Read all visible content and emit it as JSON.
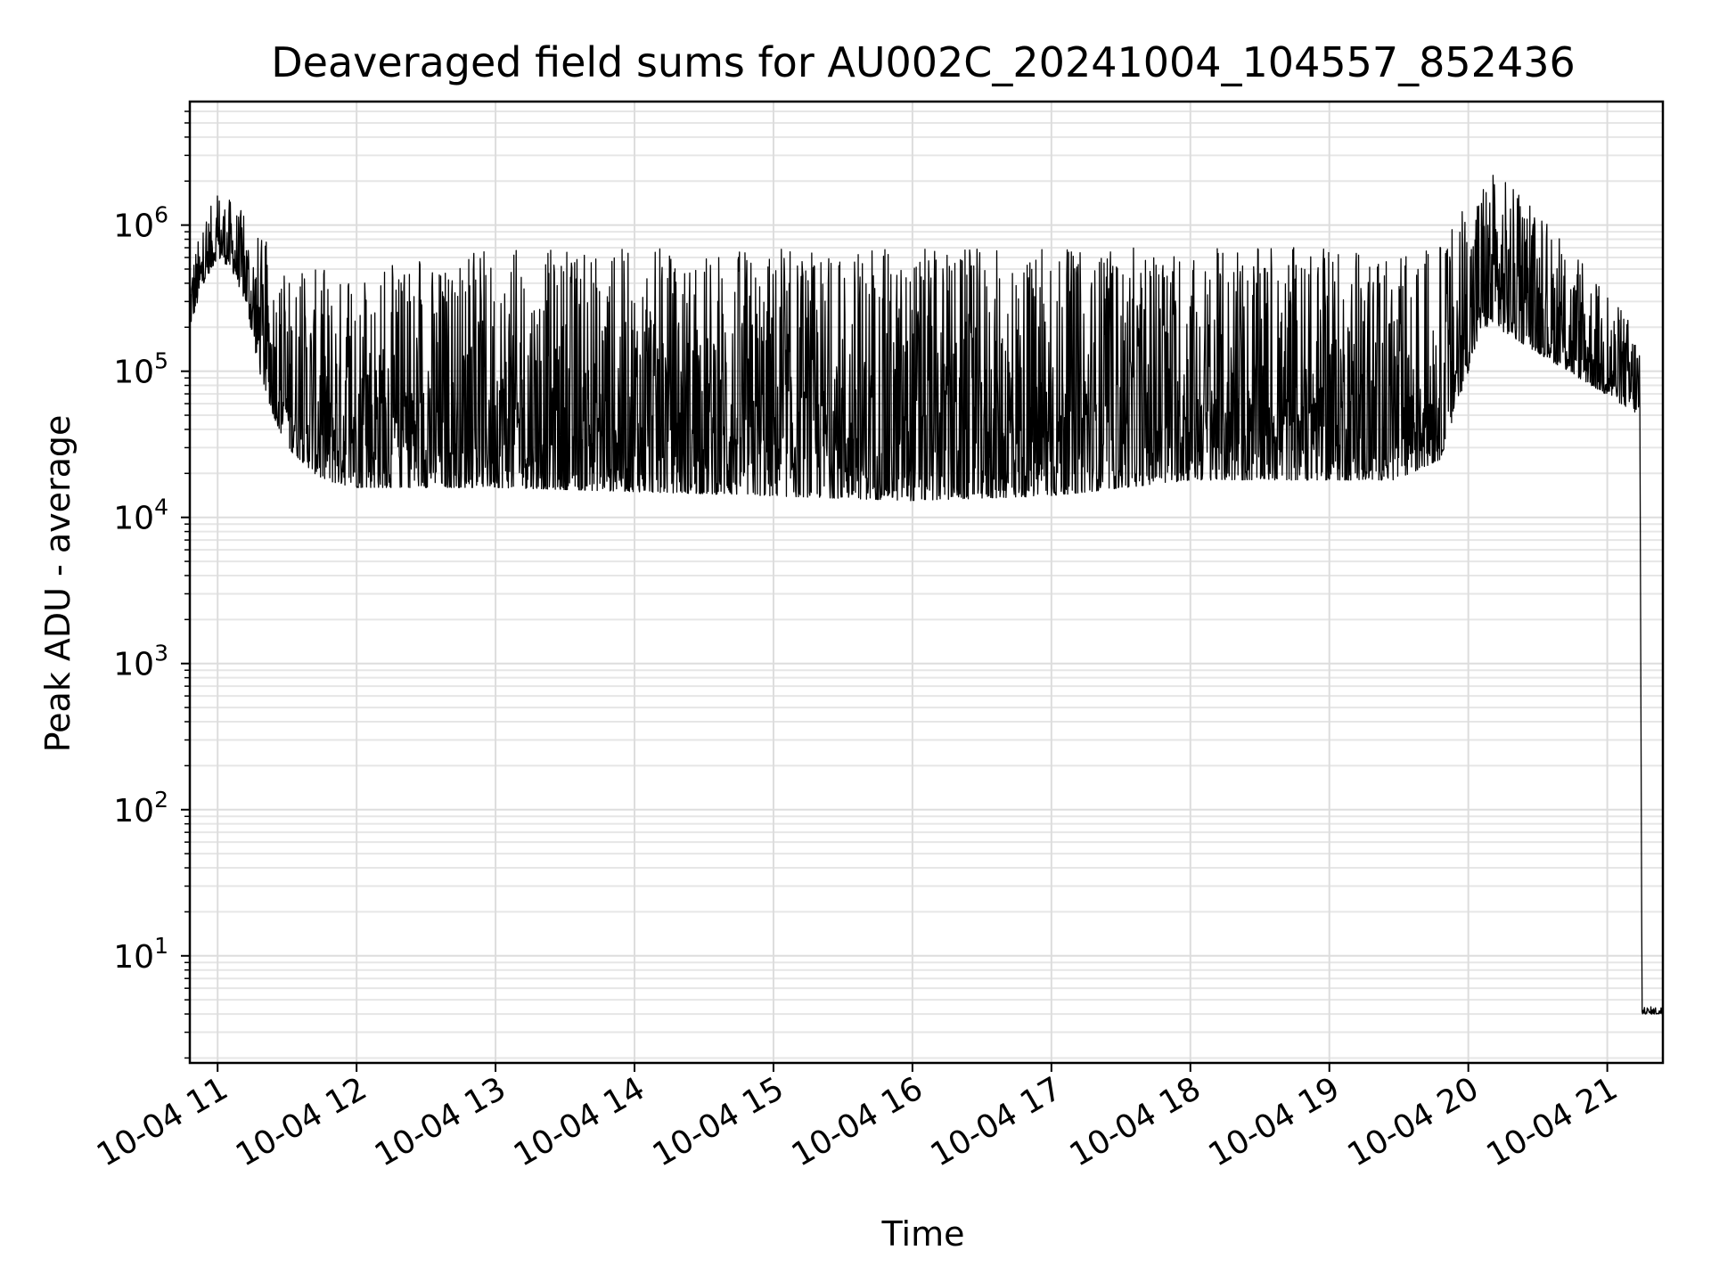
{
  "chart_data": {
    "type": "line",
    "title": "Deaveraged field sums for AU002C_20241004_104557_852436",
    "xlabel": "Time",
    "ylabel": "Peak ADU - average",
    "xlim": [
      "2024-10-04 10:48",
      "2024-10-04 21:24"
    ],
    "ylim": [
      1.85,
      7000000
    ],
    "yscale": "log",
    "grid": true,
    "x_ticks": [
      {
        "x": "2024-10-04 11:00",
        "label": "10-04 11"
      },
      {
        "x": "2024-10-04 12:00",
        "label": "10-04 12"
      },
      {
        "x": "2024-10-04 13:00",
        "label": "10-04 13"
      },
      {
        "x": "2024-10-04 14:00",
        "label": "10-04 14"
      },
      {
        "x": "2024-10-04 15:00",
        "label": "10-04 15"
      },
      {
        "x": "2024-10-04 16:00",
        "label": "10-04 16"
      },
      {
        "x": "2024-10-04 17:00",
        "label": "10-04 17"
      },
      {
        "x": "2024-10-04 18:00",
        "label": "10-04 18"
      },
      {
        "x": "2024-10-04 19:00",
        "label": "10-04 19"
      },
      {
        "x": "2024-10-04 20:00",
        "label": "10-04 20"
      },
      {
        "x": "2024-10-04 21:00",
        "label": "10-04 21"
      }
    ],
    "y_ticks": [
      {
        "value": 10,
        "base": "10",
        "exp": "1"
      },
      {
        "value": 100,
        "base": "10",
        "exp": "2"
      },
      {
        "value": 1000,
        "base": "10",
        "exp": "3"
      },
      {
        "value": 10000,
        "base": "10",
        "exp": "4"
      },
      {
        "value": 100000,
        "base": "10",
        "exp": "5"
      },
      {
        "value": 1000000,
        "base": "10",
        "exp": "6"
      }
    ],
    "line_color": "#000000",
    "series_envelope": [
      {
        "t": "2024-10-04 10:48",
        "low": 200000,
        "high": 600000
      },
      {
        "t": "2024-10-04 10:54",
        "low": 400000,
        "high": 1000000
      },
      {
        "t": "2024-10-04 11:00",
        "low": 600000,
        "high": 1800000
      },
      {
        "t": "2024-10-04 11:06",
        "low": 500000,
        "high": 1500000
      },
      {
        "t": "2024-10-04 11:12",
        "low": 300000,
        "high": 1200000
      },
      {
        "t": "2024-10-04 11:18",
        "low": 100000,
        "high": 900000
      },
      {
        "t": "2024-10-04 11:24",
        "low": 50000,
        "high": 700000
      },
      {
        "t": "2024-10-04 11:30",
        "low": 30000,
        "high": 500000
      },
      {
        "t": "2024-10-04 11:45",
        "low": 18000,
        "high": 500000
      },
      {
        "t": "2024-10-04 12:00",
        "low": 16000,
        "high": 500000
      },
      {
        "t": "2024-10-04 13:00",
        "low": 16000,
        "high": 700000
      },
      {
        "t": "2024-10-04 14:00",
        "low": 15000,
        "high": 700000
      },
      {
        "t": "2024-10-04 15:00",
        "low": 14000,
        "high": 700000
      },
      {
        "t": "2024-10-04 16:00",
        "low": 13000,
        "high": 700000
      },
      {
        "t": "2024-10-04 17:00",
        "low": 14000,
        "high": 700000
      },
      {
        "t": "2024-10-04 18:00",
        "low": 18000,
        "high": 700000
      },
      {
        "t": "2024-10-04 19:00",
        "low": 18000,
        "high": 700000
      },
      {
        "t": "2024-10-04 19:30",
        "low": 18000,
        "high": 600000
      },
      {
        "t": "2024-10-04 19:48",
        "low": 25000,
        "high": 800000
      },
      {
        "t": "2024-10-04 20:00",
        "low": 100000,
        "high": 1500000
      },
      {
        "t": "2024-10-04 20:06",
        "low": 200000,
        "high": 2500000
      },
      {
        "t": "2024-10-04 20:12",
        "low": 200000,
        "high": 2500000
      },
      {
        "t": "2024-10-04 21:14",
        "low": 50000,
        "high": 200000
      },
      {
        "t": "2024-10-04 21:15",
        "low": 4,
        "high": 4.5
      },
      {
        "t": "2024-10-04 21:24",
        "low": 4,
        "high": 4.5
      }
    ]
  }
}
